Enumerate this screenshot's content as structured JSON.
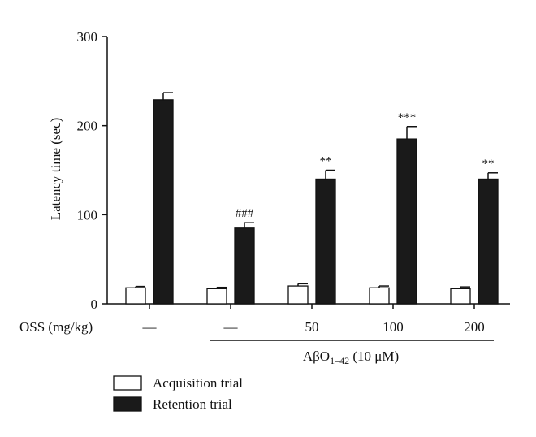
{
  "chart_data": {
    "type": "bar",
    "ylabel": "Latency time (sec)",
    "ylim": [
      0,
      300
    ],
    "yticks": [
      0,
      100,
      200,
      300
    ],
    "category_axis_label": "OSS (mg/kg)",
    "categories": [
      "—",
      "—",
      "50",
      "100",
      "200"
    ],
    "group_bracket_label": "AβO",
    "group_bracket_subscript": "1–42",
    "group_bracket_suffix": " (10 μM)",
    "series": [
      {
        "name": "Acquisition trial",
        "color": "#ffffff",
        "values": [
          18,
          17,
          20,
          18,
          17
        ],
        "errors": [
          1.5,
          1.5,
          2.5,
          2,
          2
        ]
      },
      {
        "name": "Retention trial",
        "color": "#1a1a1a",
        "values": [
          229,
          85,
          140,
          185,
          140
        ],
        "errors": [
          8,
          6,
          10,
          14,
          7
        ]
      }
    ],
    "annotations": [
      "",
      "###",
      "**",
      "***",
      "**"
    ],
    "legend_position": "bottom-left",
    "grid": false
  }
}
